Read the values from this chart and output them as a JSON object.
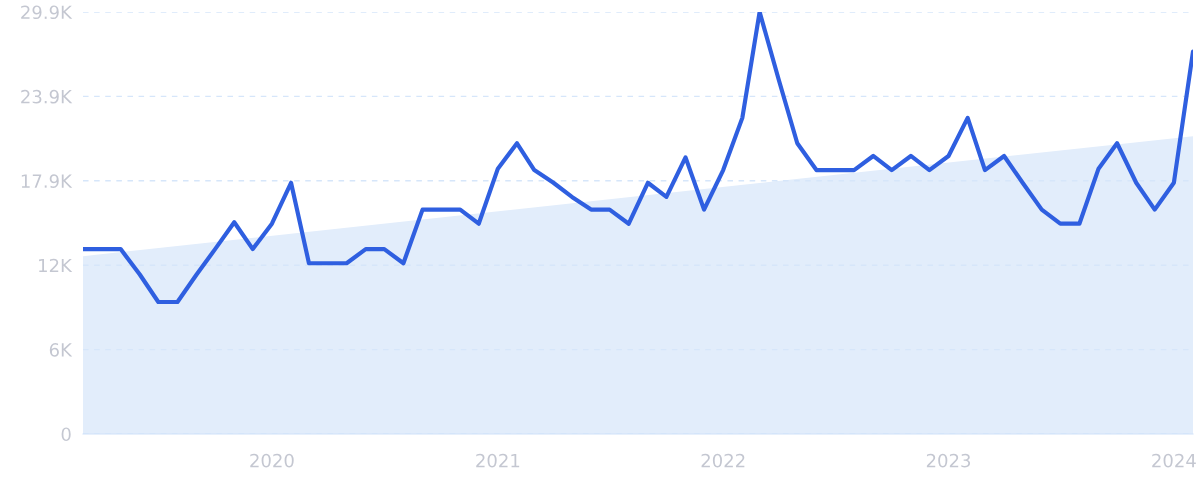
{
  "chart_data": {
    "type": "line",
    "x": [
      "2019-03",
      "2019-04",
      "2019-05",
      "2019-06",
      "2019-07",
      "2019-08",
      "2019-09",
      "2019-10",
      "2019-11",
      "2019-12",
      "2020-01",
      "2020-02",
      "2020-03",
      "2020-04",
      "2020-05",
      "2020-06",
      "2020-07",
      "2020-08",
      "2020-09",
      "2020-10",
      "2020-11",
      "2020-12",
      "2021-01",
      "2021-02",
      "2021-03",
      "2021-04",
      "2021-05",
      "2021-06",
      "2021-07",
      "2021-08",
      "2021-09",
      "2021-10",
      "2021-11",
      "2021-12",
      "2022-01",
      "2022-02",
      "2022-03",
      "2022-04",
      "2022-05",
      "2022-06",
      "2022-07",
      "2022-08",
      "2022-09",
      "2022-10",
      "2022-11",
      "2022-12",
      "2023-01",
      "2023-02",
      "2023-03",
      "2023-04",
      "2023-05",
      "2023-06",
      "2023-07",
      "2023-08",
      "2023-09",
      "2023-10",
      "2023-11",
      "2023-12",
      "2024-01",
      "2024-02"
    ],
    "series": [
      {
        "type": "area",
        "color": "#e2edfb",
        "x": [
          "2019-03",
          "2024-02"
        ],
        "values": [
          12600,
          21100
        ]
      },
      {
        "color": "#2f5fe0",
        "values": [
          13100,
          13100,
          13100,
          11300,
          9350,
          9350,
          11300,
          13100,
          15000,
          13100,
          14900,
          17800,
          12100,
          12100,
          12100,
          13100,
          13100,
          12100,
          15900,
          15900,
          15900,
          14900,
          18800,
          20600,
          18700,
          17800,
          16800,
          15900,
          15900,
          14900,
          17800,
          16800,
          19600,
          15900,
          18700,
          22400,
          29900,
          25100,
          20600,
          18700,
          18700,
          18700,
          19700,
          18700,
          19700,
          18700,
          19700,
          22400,
          18700,
          19700,
          17800,
          15900,
          14900,
          14900,
          18800,
          20600,
          17800,
          15900,
          17800,
          27100
        ]
      }
    ],
    "xlim": [
      "2019-03",
      "2024-02"
    ],
    "xticks": [
      {
        "value": "2020-01",
        "label": "2020"
      },
      {
        "value": "2021-01",
        "label": "2021"
      },
      {
        "value": "2022-01",
        "label": "2022"
      },
      {
        "value": "2023-01",
        "label": "2023"
      },
      {
        "value": "2024-01",
        "label": "2024"
      }
    ],
    "ylim": [
      0,
      29900
    ],
    "yticks": [
      0,
      {
        "value": 5980,
        "label": "6K"
      },
      {
        "value": 11960,
        "label": "12K"
      },
      {
        "value": 17940,
        "label": "17.9K"
      },
      {
        "value": 23920,
        "label": "23.9K"
      },
      {
        "value": 29900,
        "label": "29.9K"
      }
    ],
    "grid": "y",
    "line_style": "solid",
    "marker": "none"
  }
}
